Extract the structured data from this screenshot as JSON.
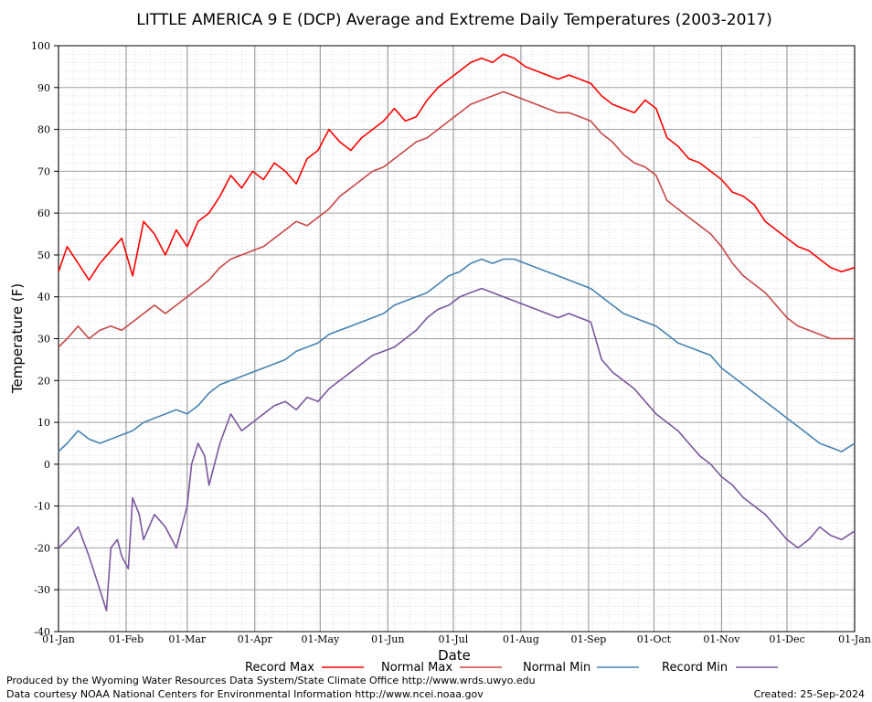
{
  "chart_data": {
    "type": "line",
    "title": "LITTLE AMERICA 9 E (DCP) Average and Extreme Daily Temperatures (2003-2017)",
    "xlabel": "Date",
    "ylabel": "Temperature (F)",
    "ylim": [
      -40,
      100
    ],
    "yticks": [
      100,
      90,
      80,
      70,
      60,
      50,
      40,
      30,
      20,
      10,
      0,
      -10,
      -20,
      -30,
      -40
    ],
    "xlim": [
      1,
      366
    ],
    "xtick_days": [
      1,
      32,
      60,
      91,
      121,
      152,
      182,
      213,
      244,
      274,
      305,
      335,
      366
    ],
    "xtick_labels": [
      "01-Jan",
      "01-Feb",
      "01-Mar",
      "01-Apr",
      "01-May",
      "01-Jun",
      "01-Jul",
      "01-Aug",
      "01-Sep",
      "01-Oct",
      "01-Nov",
      "01-Dec",
      "01-Jan"
    ],
    "grid": true,
    "legend_position": "bottom",
    "series": [
      {
        "name": "Record Max",
        "color": "#ff0000",
        "x": [
          1,
          5,
          10,
          15,
          20,
          25,
          30,
          35,
          40,
          45,
          50,
          55,
          60,
          65,
          70,
          75,
          80,
          85,
          90,
          95,
          100,
          105,
          110,
          115,
          120,
          125,
          130,
          135,
          140,
          145,
          150,
          155,
          160,
          165,
          170,
          175,
          180,
          185,
          190,
          195,
          200,
          205,
          210,
          215,
          220,
          225,
          230,
          235,
          240,
          245,
          250,
          255,
          260,
          265,
          270,
          275,
          280,
          285,
          290,
          295,
          300,
          305,
          310,
          315,
          320,
          325,
          330,
          335,
          340,
          345,
          350,
          355,
          360,
          366
        ],
        "y": [
          46,
          52,
          48,
          44,
          48,
          51,
          54,
          45,
          58,
          55,
          50,
          56,
          52,
          58,
          60,
          64,
          69,
          66,
          70,
          68,
          72,
          70,
          67,
          73,
          75,
          80,
          77,
          75,
          78,
          80,
          82,
          85,
          82,
          83,
          87,
          90,
          92,
          94,
          96,
          97,
          96,
          98,
          97,
          95,
          94,
          93,
          92,
          93,
          92,
          91,
          88,
          86,
          85,
          84,
          87,
          85,
          78,
          76,
          73,
          72,
          70,
          68,
          65,
          64,
          62,
          58,
          56,
          54,
          52,
          51,
          49,
          47,
          46,
          47
        ]
      },
      {
        "name": "Normal Max",
        "color": "#c84646",
        "x": [
          1,
          5,
          10,
          15,
          20,
          25,
          30,
          35,
          40,
          45,
          50,
          55,
          60,
          65,
          70,
          75,
          80,
          85,
          90,
          95,
          100,
          105,
          110,
          115,
          120,
          125,
          130,
          135,
          140,
          145,
          150,
          155,
          160,
          165,
          170,
          175,
          180,
          185,
          190,
          195,
          200,
          205,
          210,
          215,
          220,
          225,
          230,
          235,
          240,
          245,
          250,
          255,
          260,
          265,
          270,
          275,
          280,
          285,
          290,
          295,
          300,
          305,
          310,
          315,
          320,
          325,
          330,
          335,
          340,
          345,
          350,
          355,
          360,
          366
        ],
        "y": [
          28,
          30,
          33,
          30,
          32,
          33,
          32,
          34,
          36,
          38,
          36,
          38,
          40,
          42,
          44,
          47,
          49,
          50,
          51,
          52,
          54,
          56,
          58,
          57,
          59,
          61,
          64,
          66,
          68,
          70,
          71,
          73,
          75,
          77,
          78,
          80,
          82,
          84,
          86,
          87,
          88,
          89,
          88,
          87,
          86,
          85,
          84,
          84,
          83,
          82,
          79,
          77,
          74,
          72,
          71,
          69,
          63,
          61,
          59,
          57,
          55,
          52,
          48,
          45,
          43,
          41,
          38,
          35,
          33,
          32,
          31,
          30,
          30,
          30
        ]
      },
      {
        "name": "Normal Min",
        "color": "#4682b4",
        "x": [
          1,
          5,
          10,
          15,
          20,
          25,
          30,
          35,
          40,
          45,
          50,
          55,
          60,
          65,
          70,
          75,
          80,
          85,
          90,
          95,
          100,
          105,
          110,
          115,
          120,
          125,
          130,
          135,
          140,
          145,
          150,
          155,
          160,
          165,
          170,
          175,
          180,
          185,
          190,
          195,
          200,
          205,
          210,
          215,
          220,
          225,
          230,
          235,
          240,
          245,
          250,
          255,
          260,
          265,
          270,
          275,
          280,
          285,
          290,
          295,
          300,
          305,
          310,
          315,
          320,
          325,
          330,
          335,
          340,
          345,
          350,
          355,
          360,
          366
        ],
        "y": [
          3,
          5,
          8,
          6,
          5,
          6,
          7,
          8,
          10,
          11,
          12,
          13,
          12,
          14,
          17,
          19,
          20,
          21,
          22,
          23,
          24,
          25,
          27,
          28,
          29,
          31,
          32,
          33,
          34,
          35,
          36,
          38,
          39,
          40,
          41,
          43,
          45,
          46,
          48,
          49,
          48,
          49,
          49,
          48,
          47,
          46,
          45,
          44,
          43,
          42,
          40,
          38,
          36,
          35,
          34,
          33,
          31,
          29,
          28,
          27,
          26,
          23,
          21,
          19,
          17,
          15,
          13,
          11,
          9,
          7,
          5,
          4,
          3,
          5
        ]
      },
      {
        "name": "Record Min",
        "color": "#7b559e",
        "x": [
          1,
          5,
          10,
          15,
          20,
          23,
          25,
          28,
          30,
          33,
          35,
          38,
          40,
          45,
          50,
          55,
          60,
          62,
          65,
          68,
          70,
          75,
          80,
          85,
          90,
          95,
          100,
          105,
          110,
          115,
          120,
          125,
          130,
          135,
          140,
          145,
          150,
          155,
          160,
          165,
          170,
          175,
          180,
          185,
          190,
          195,
          200,
          205,
          210,
          215,
          220,
          225,
          230,
          235,
          240,
          245,
          250,
          255,
          260,
          265,
          270,
          275,
          280,
          285,
          290,
          295,
          300,
          305,
          310,
          315,
          320,
          325,
          330,
          335,
          340,
          345,
          350,
          355,
          360,
          366
        ],
        "y": [
          -20,
          -18,
          -15,
          -22,
          -30,
          -35,
          -20,
          -18,
          -22,
          -25,
          -8,
          -12,
          -18,
          -12,
          -15,
          -20,
          -10,
          0,
          5,
          2,
          -5,
          5,
          12,
          8,
          10,
          12,
          14,
          15,
          13,
          16,
          15,
          18,
          20,
          22,
          24,
          26,
          27,
          28,
          30,
          32,
          35,
          37,
          38,
          40,
          41,
          42,
          41,
          40,
          39,
          38,
          37,
          36,
          35,
          36,
          35,
          34,
          25,
          22,
          20,
          18,
          15,
          12,
          10,
          8,
          5,
          2,
          0,
          -3,
          -5,
          -8,
          -10,
          -12,
          -15,
          -18,
          -20,
          -18,
          -15,
          -17,
          -18,
          -16
        ]
      }
    ]
  },
  "legend": {
    "record_max": "Record Max",
    "normal_max": "Normal Max",
    "normal_min": "Normal Min",
    "record_min": "Record Min"
  },
  "footer": {
    "produced_by": "Produced by the Wyoming Water Resources Data System/State Climate Office http://www.wrds.uwyo.edu",
    "courtesy": "Data courtesy NOAA National Centers for Environmental Information http://www.ncei.noaa.gov",
    "created": "Created:  25-Sep-2024"
  }
}
